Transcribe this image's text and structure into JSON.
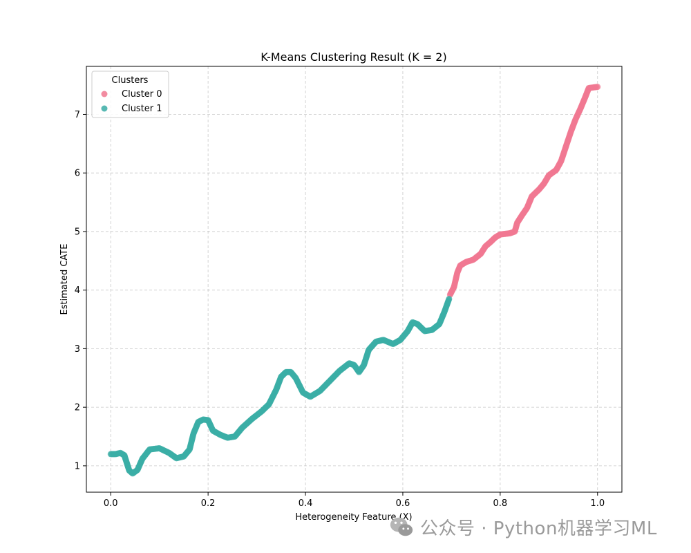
{
  "chart_data": {
    "type": "scatter",
    "title": "K-Means Clustering Result (K = 2)",
    "xlabel": "Heterogeneity Feature (X)",
    "ylabel": "Estimated CATE",
    "xlim": [
      -0.05,
      1.05
    ],
    "ylim": [
      0.55,
      7.82
    ],
    "xticks": [
      "0.0",
      "0.2",
      "0.4",
      "0.6",
      "0.8",
      "1.0"
    ],
    "yticks": [
      "1",
      "2",
      "3",
      "4",
      "5",
      "6",
      "7"
    ],
    "grid": true,
    "legend": {
      "title": "Clusters",
      "position": "top-left"
    },
    "series": [
      {
        "name": "Cluster 0",
        "color": "#f07891",
        "anchors": [
          [
            0.697,
            3.92
          ],
          [
            0.705,
            4.05
          ],
          [
            0.712,
            4.3
          ],
          [
            0.718,
            4.42
          ],
          [
            0.73,
            4.48
          ],
          [
            0.745,
            4.52
          ],
          [
            0.76,
            4.62
          ],
          [
            0.77,
            4.75
          ],
          [
            0.78,
            4.82
          ],
          [
            0.79,
            4.9
          ],
          [
            0.8,
            4.95
          ],
          [
            0.82,
            4.97
          ],
          [
            0.83,
            5.0
          ],
          [
            0.835,
            5.15
          ],
          [
            0.845,
            5.28
          ],
          [
            0.855,
            5.4
          ],
          [
            0.865,
            5.6
          ],
          [
            0.88,
            5.72
          ],
          [
            0.89,
            5.82
          ],
          [
            0.9,
            5.96
          ],
          [
            0.915,
            6.05
          ],
          [
            0.925,
            6.2
          ],
          [
            0.935,
            6.45
          ],
          [
            0.945,
            6.7
          ],
          [
            0.955,
            6.92
          ],
          [
            0.965,
            7.1
          ],
          [
            0.975,
            7.3
          ],
          [
            0.982,
            7.45
          ],
          [
            1.0,
            7.47
          ]
        ]
      },
      {
        "name": "Cluster 1",
        "color": "#3bada6",
        "anchors": [
          [
            0.0,
            1.2
          ],
          [
            0.01,
            1.2
          ],
          [
            0.02,
            1.22
          ],
          [
            0.028,
            1.18
          ],
          [
            0.033,
            1.05
          ],
          [
            0.038,
            0.92
          ],
          [
            0.045,
            0.87
          ],
          [
            0.055,
            0.93
          ],
          [
            0.065,
            1.12
          ],
          [
            0.08,
            1.28
          ],
          [
            0.1,
            1.3
          ],
          [
            0.12,
            1.22
          ],
          [
            0.135,
            1.13
          ],
          [
            0.15,
            1.16
          ],
          [
            0.162,
            1.28
          ],
          [
            0.17,
            1.55
          ],
          [
            0.18,
            1.75
          ],
          [
            0.19,
            1.79
          ],
          [
            0.2,
            1.78
          ],
          [
            0.21,
            1.6
          ],
          [
            0.225,
            1.53
          ],
          [
            0.24,
            1.48
          ],
          [
            0.255,
            1.5
          ],
          [
            0.27,
            1.65
          ],
          [
            0.29,
            1.8
          ],
          [
            0.31,
            1.93
          ],
          [
            0.325,
            2.05
          ],
          [
            0.34,
            2.3
          ],
          [
            0.35,
            2.52
          ],
          [
            0.36,
            2.6
          ],
          [
            0.37,
            2.6
          ],
          [
            0.38,
            2.5
          ],
          [
            0.395,
            2.25
          ],
          [
            0.41,
            2.18
          ],
          [
            0.43,
            2.28
          ],
          [
            0.45,
            2.45
          ],
          [
            0.47,
            2.62
          ],
          [
            0.49,
            2.75
          ],
          [
            0.5,
            2.72
          ],
          [
            0.51,
            2.6
          ],
          [
            0.52,
            2.72
          ],
          [
            0.53,
            2.98
          ],
          [
            0.545,
            3.12
          ],
          [
            0.56,
            3.15
          ],
          [
            0.58,
            3.08
          ],
          [
            0.595,
            3.15
          ],
          [
            0.61,
            3.3
          ],
          [
            0.62,
            3.45
          ],
          [
            0.63,
            3.42
          ],
          [
            0.645,
            3.3
          ],
          [
            0.66,
            3.32
          ],
          [
            0.675,
            3.42
          ],
          [
            0.685,
            3.62
          ],
          [
            0.695,
            3.85
          ]
        ]
      }
    ]
  },
  "watermark": {
    "text": "公众号 · Python机器学习ML",
    "icon": "wechat-icon"
  }
}
